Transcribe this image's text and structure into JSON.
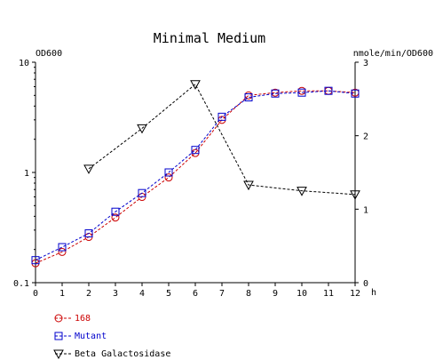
{
  "chart_data": {
    "type": "line",
    "title": "Minimal Medium",
    "xlabel": "h",
    "ylabel_left": "OD600",
    "ylabel_right": "nmole/min/OD600",
    "xlim": [
      0,
      12
    ],
    "x_ticks": [
      "0",
      "1",
      "2",
      "3",
      "4",
      "5",
      "6",
      "7",
      "8",
      "9",
      "10",
      "11",
      "12"
    ],
    "y_left": {
      "scale": "log",
      "range": [
        0.1,
        10
      ],
      "ticks": [
        "0.1",
        "1",
        "10"
      ]
    },
    "y_right": {
      "scale": "linear",
      "range": [
        0,
        3
      ],
      "ticks": [
        "0",
        "1",
        "2",
        "3"
      ]
    },
    "grid": false,
    "legend_position": "bottom-left",
    "series": [
      {
        "name": "168",
        "axis": "left",
        "marker": "circle",
        "color": "#cc0000",
        "x": [
          0,
          1,
          2,
          3,
          4,
          5,
          6,
          7,
          8,
          9,
          10,
          11,
          12
        ],
        "y": [
          0.15,
          0.19,
          0.26,
          0.39,
          0.6,
          0.9,
          1.5,
          3.0,
          5.0,
          5.3,
          5.5,
          5.5,
          5.3
        ]
      },
      {
        "name": "Mutant",
        "axis": "left",
        "marker": "square",
        "color": "#0000cc",
        "x": [
          0,
          1,
          2,
          3,
          4,
          5,
          6,
          7,
          8,
          9,
          10,
          11,
          12
        ],
        "y": [
          0.16,
          0.21,
          0.28,
          0.44,
          0.65,
          1.0,
          1.6,
          3.2,
          4.8,
          5.2,
          5.3,
          5.5,
          5.2
        ]
      },
      {
        "name": "Beta Galactosidase",
        "axis": "right",
        "marker": "triangle-down",
        "color": "#000000",
        "x": [
          2,
          4,
          6,
          8,
          10,
          12
        ],
        "y": [
          1.55,
          2.1,
          2.7,
          1.33,
          1.25,
          1.2
        ]
      }
    ]
  }
}
